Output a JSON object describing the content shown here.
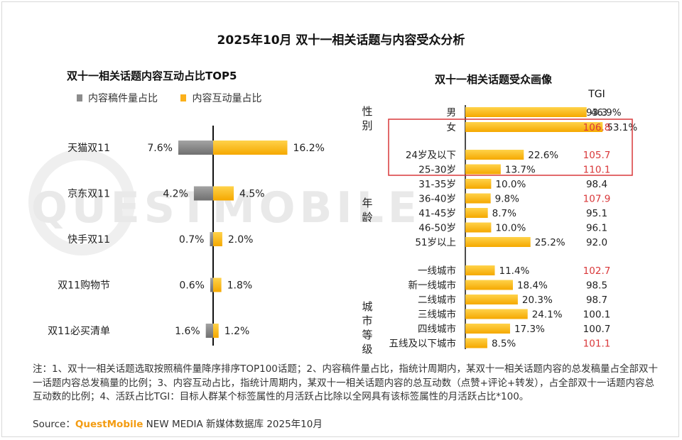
{
  "title": "2025年10月 双十一相关话题与内容受众分析",
  "colors": {
    "gray": "#8c8c8c",
    "orange": "#fbb01a",
    "highlight_box": "#d9383a",
    "tgi_high": "#d9383a",
    "text": "#222222"
  },
  "chart_data": [
    {
      "type": "bar",
      "title": "双十一相关话题内容互动占比TOP5",
      "orientation": "horizontal-diverging",
      "categories": [
        "天猫双11",
        "京东双11",
        "快手双11",
        "双11购物节",
        "双11必买清单"
      ],
      "series": [
        {
          "name": "内容稿件量占比",
          "values": [
            7.6,
            4.2,
            0.7,
            0.6,
            1.6
          ],
          "labels": [
            "7.6%",
            "4.2%",
            "0.7%",
            "0.6%",
            "1.6%"
          ]
        },
        {
          "name": "内容互动量占比",
          "values": [
            16.2,
            4.5,
            2.0,
            1.8,
            1.2
          ],
          "labels": [
            "16.2%",
            "4.5%",
            "2.0%",
            "1.8%",
            "1.2%"
          ]
        }
      ]
    },
    {
      "type": "bar",
      "title": "双十一相关话题受众画像",
      "tgi_header": "TGI",
      "groups": [
        {
          "name": "性别",
          "categories": [
            "男",
            "女"
          ],
          "values": [
            46.9,
            53.1
          ],
          "labels": [
            "46.9%",
            "53.1%"
          ],
          "tgi": [
            "93.3",
            "106.8"
          ],
          "tgi_high": [
            false,
            true
          ]
        },
        {
          "name": "年龄",
          "categories": [
            "24岁及以下",
            "25-30岁",
            "31-35岁",
            "36-40岁",
            "41-45岁",
            "46-50岁",
            "51岁以上"
          ],
          "values": [
            22.6,
            13.7,
            10.0,
            9.8,
            8.7,
            10.0,
            25.2
          ],
          "labels": [
            "22.6%",
            "13.7%",
            "10.0%",
            "9.8%",
            "8.7%",
            "10.0%",
            "25.2%"
          ],
          "tgi": [
            "105.7",
            "110.1",
            "98.4",
            "107.9",
            "95.1",
            "96.1",
            "92.0"
          ],
          "tgi_high": [
            true,
            true,
            false,
            true,
            false,
            false,
            false
          ]
        },
        {
          "name": "城市等级",
          "categories": [
            "一线城市",
            "新一线城市",
            "二线城市",
            "三线城市",
            "四线城市",
            "五线及以下城市"
          ],
          "values": [
            11.4,
            18.4,
            20.3,
            24.1,
            17.3,
            8.5
          ],
          "labels": [
            "11.4%",
            "18.4%",
            "20.3%",
            "24.1%",
            "17.3%",
            "8.5%"
          ],
          "tgi": [
            "102.7",
            "98.5",
            "98.7",
            "100.1",
            "100.7",
            "101.1"
          ],
          "tgi_high": [
            true,
            false,
            false,
            false,
            false,
            true
          ]
        }
      ]
    }
  ],
  "notes": "注：1、双十一相关话题选取按照稿件量降序排序TOP100话题；2、内容稿件量占比，指统计周期内，某双十一相关话题内容的总发稿量占全部双十一话题内容总发稿量的比例；3、内容互动占比，指统计周期内，某双十一相关话题内容的总互动数（点赞+评论+转发），占全部双十一话题内容总互动数的比例；4、活跃占比TGI：目标人群某个标签属性的月活跃占比除以全网具有该标签属性的月活跃占比*100。",
  "source": {
    "prefix": "Source：",
    "brand": "QuestMobile",
    "suffix": " NEW MEDIA 新媒体数据库 2025年10月"
  },
  "watermark": "QUESTMOBILE"
}
